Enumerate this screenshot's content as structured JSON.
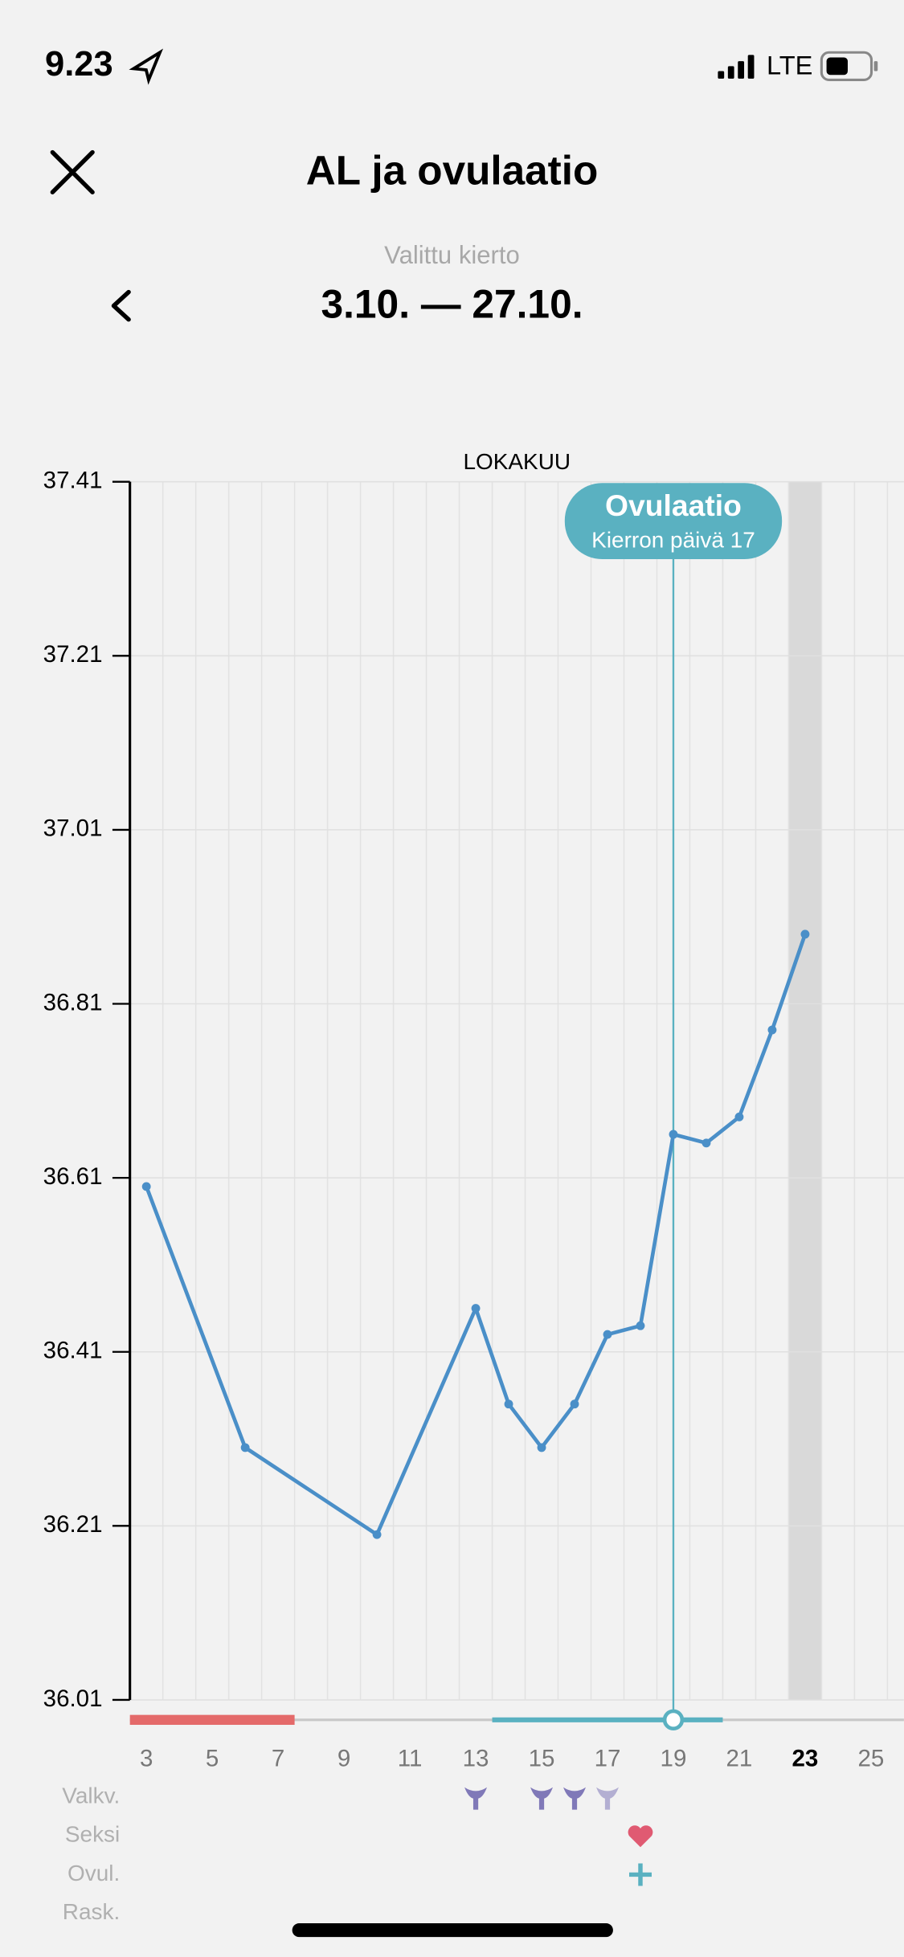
{
  "status_bar": {
    "time": "9.23",
    "network": "LTE"
  },
  "header": {
    "title": "AL ja ovulaatio",
    "cycle_label": "Valittu kierto",
    "cycle_range": "3.10. — 27.10."
  },
  "chart_data": {
    "type": "line",
    "title": "LOKAKUU",
    "x": [
      3,
      6,
      10,
      13,
      14,
      15,
      16,
      17,
      18,
      19,
      20,
      21,
      22,
      23
    ],
    "values": [
      36.6,
      36.3,
      36.2,
      36.46,
      36.35,
      36.3,
      36.35,
      36.43,
      36.44,
      36.66,
      36.65,
      36.68,
      36.78,
      36.89
    ],
    "color": "#4a8fc8",
    "xlim": [
      2.5,
      26
    ],
    "xticks": [
      3,
      5,
      7,
      9,
      11,
      13,
      15,
      17,
      19,
      21,
      23,
      25
    ],
    "ylim": [
      36.01,
      37.41
    ],
    "yticks": [
      36.01,
      36.21,
      36.41,
      36.61,
      36.81,
      37.01,
      37.21,
      37.41
    ],
    "grid": true,
    "highlight_day": 23,
    "ovulation": {
      "day": 19,
      "title": "Ovulaatio",
      "subtitle": "Kierron päivä 17",
      "color": "#5ab1c1"
    },
    "period": {
      "days": [
        3,
        7
      ],
      "color": "#e46a6a"
    },
    "fertile": {
      "days": [
        14,
        20
      ],
      "color": "#5ab1c1"
    },
    "events": [
      {
        "label": "Valkv.",
        "days": [
          13,
          15,
          16,
          17
        ],
        "color": "#8079b8"
      },
      {
        "label": "Seksi",
        "days": [
          18
        ],
        "color": "#e05a72"
      },
      {
        "label": "Ovul.",
        "days": [
          18
        ],
        "color": "#5ab1c1"
      },
      {
        "label": "Rask.",
        "days": [],
        "color": "#999999"
      }
    ]
  }
}
